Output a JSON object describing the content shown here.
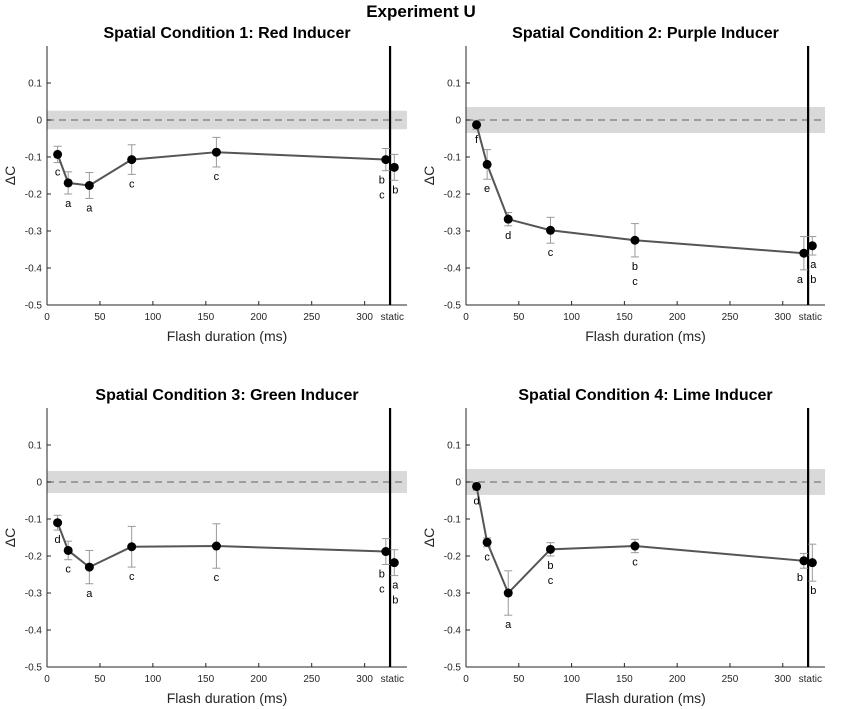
{
  "figure_title": "Experiment U",
  "chart_data": [
    {
      "type": "line",
      "title": "Spatial Condition 1: Red Inducer",
      "xlabel": "Flash duration (ms)",
      "ylabel": "ΔC",
      "xlim": [
        0,
        340
      ],
      "ylim": [
        -0.5,
        0.2
      ],
      "x_ticks": [
        0,
        50,
        100,
        150,
        200,
        250,
        300
      ],
      "y_ticks": [
        -0.5,
        -0.4,
        -0.3,
        -0.2,
        -0.1,
        0,
        0.1
      ],
      "static_label": "static",
      "reference_band": [
        -0.025,
        0.025
      ],
      "series": [
        {
          "name": "flash",
          "x": [
            10,
            20,
            40,
            80,
            160,
            320
          ],
          "y": [
            -0.093,
            -0.17,
            -0.177,
            -0.107,
            -0.087,
            -0.107
          ],
          "err": [
            0.022,
            0.03,
            0.035,
            0.04,
            0.04,
            0.03
          ]
        },
        {
          "name": "static",
          "x": [
            328
          ],
          "y": [
            -0.128
          ],
          "err": [
            0.035
          ]
        }
      ],
      "letters": [
        {
          "x": 10,
          "text": "c"
        },
        {
          "x": 20,
          "text": "a"
        },
        {
          "x": 40,
          "text": "a"
        },
        {
          "x": 80,
          "text": "c"
        },
        {
          "x": 160,
          "text": "c"
        },
        {
          "x": 320,
          "text": "b"
        },
        {
          "x": 320,
          "text": "c"
        },
        {
          "x": 328,
          "text": "b"
        }
      ]
    },
    {
      "type": "line",
      "title": "Spatial Condition 2: Purple Inducer",
      "xlabel": "Flash duration (ms)",
      "ylabel": "ΔC",
      "xlim": [
        0,
        340
      ],
      "ylim": [
        -0.5,
        0.2
      ],
      "x_ticks": [
        0,
        50,
        100,
        150,
        200,
        250,
        300
      ],
      "y_ticks": [
        -0.5,
        -0.4,
        -0.3,
        -0.2,
        -0.1,
        0,
        0.1
      ],
      "static_label": "static",
      "reference_band": [
        -0.035,
        0.035
      ],
      "series": [
        {
          "name": "flash",
          "x": [
            10,
            20,
            40,
            80,
            160,
            320
          ],
          "y": [
            -0.013,
            -0.12,
            -0.268,
            -0.298,
            -0.325,
            -0.36
          ],
          "err": [
            0.012,
            0.04,
            0.018,
            0.035,
            0.045,
            0.045
          ]
        },
        {
          "name": "static",
          "x": [
            328
          ],
          "y": [
            -0.34
          ],
          "err": [
            0.025
          ]
        }
      ],
      "letters": [
        {
          "x": 10,
          "text": "f"
        },
        {
          "x": 20,
          "text": "e"
        },
        {
          "x": 40,
          "text": "d"
        },
        {
          "x": 80,
          "text": "c"
        },
        {
          "x": 160,
          "text": "b"
        },
        {
          "x": 160,
          "text": "c"
        },
        {
          "x": 320,
          "text": "a"
        },
        {
          "x": 328,
          "text": "a"
        },
        {
          "x": 328,
          "text": "b"
        }
      ]
    },
    {
      "type": "line",
      "title": "Spatial Condition 3: Green Inducer",
      "xlabel": "Flash duration (ms)",
      "ylabel": "ΔC",
      "xlim": [
        0,
        340
      ],
      "ylim": [
        -0.5,
        0.2
      ],
      "x_ticks": [
        0,
        50,
        100,
        150,
        200,
        250,
        300
      ],
      "y_ticks": [
        -0.5,
        -0.4,
        -0.3,
        -0.2,
        -0.1,
        0,
        0.1
      ],
      "static_label": "static",
      "reference_band": [
        -0.03,
        0.03
      ],
      "series": [
        {
          "name": "flash",
          "x": [
            10,
            20,
            40,
            80,
            160,
            320
          ],
          "y": [
            -0.11,
            -0.185,
            -0.23,
            -0.175,
            -0.173,
            -0.188
          ],
          "err": [
            0.02,
            0.025,
            0.045,
            0.055,
            0.06,
            0.035
          ]
        },
        {
          "name": "static",
          "x": [
            328
          ],
          "y": [
            -0.218
          ],
          "err": [
            0.035
          ]
        }
      ],
      "letters": [
        {
          "x": 10,
          "text": "d"
        },
        {
          "x": 20,
          "text": "c"
        },
        {
          "x": 40,
          "text": "a"
        },
        {
          "x": 80,
          "text": "c"
        },
        {
          "x": 160,
          "text": "c"
        },
        {
          "x": 320,
          "text": "b"
        },
        {
          "x": 320,
          "text": "c"
        },
        {
          "x": 328,
          "text": "a"
        },
        {
          "x": 328,
          "text": "b"
        }
      ]
    },
    {
      "type": "line",
      "title": "Spatial Condition 4: Lime Inducer",
      "xlabel": "Flash duration (ms)",
      "ylabel": "ΔC",
      "xlim": [
        0,
        340
      ],
      "ylim": [
        -0.5,
        0.2
      ],
      "x_ticks": [
        0,
        50,
        100,
        150,
        200,
        250,
        300
      ],
      "y_ticks": [
        -0.5,
        -0.4,
        -0.3,
        -0.2,
        -0.1,
        0,
        0.1
      ],
      "static_label": "static",
      "reference_band": [
        -0.035,
        0.035
      ],
      "series": [
        {
          "name": "flash",
          "x": [
            10,
            20,
            40,
            80,
            160,
            320
          ],
          "y": [
            -0.012,
            -0.163,
            -0.3,
            -0.182,
            -0.173,
            -0.213
          ],
          "err": [
            0.01,
            0.012,
            0.06,
            0.018,
            0.018,
            0.02
          ]
        },
        {
          "name": "static",
          "x": [
            328
          ],
          "y": [
            -0.218
          ],
          "err": [
            0.05
          ]
        }
      ],
      "letters": [
        {
          "x": 10,
          "text": "d"
        },
        {
          "x": 20,
          "text": "c"
        },
        {
          "x": 40,
          "text": "a"
        },
        {
          "x": 80,
          "text": "b"
        },
        {
          "x": 80,
          "text": "c"
        },
        {
          "x": 160,
          "text": "c"
        },
        {
          "x": 320,
          "text": "b"
        },
        {
          "x": 328,
          "text": "b"
        }
      ]
    }
  ]
}
